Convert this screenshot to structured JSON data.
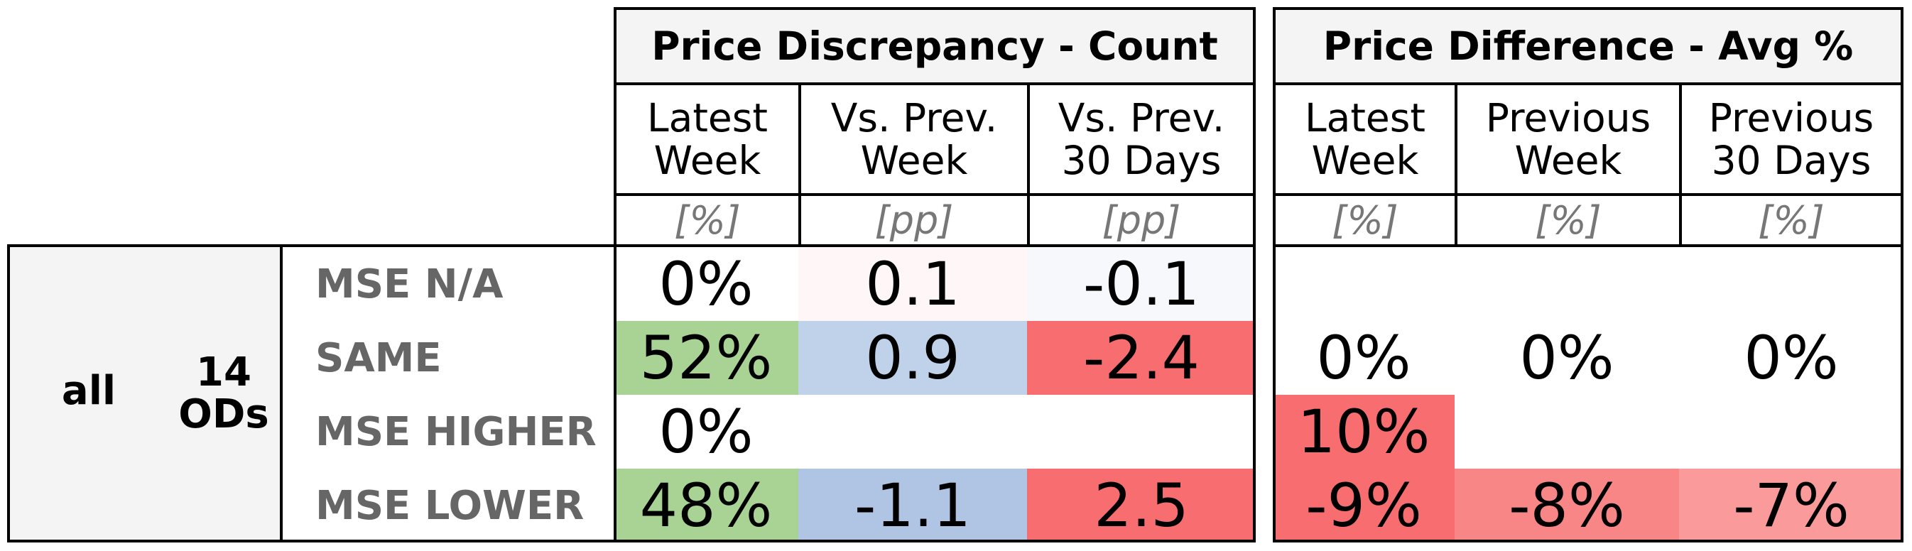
{
  "chart_data": {
    "type": "table",
    "row_group": {
      "label": "all",
      "count_label": "14\nODs"
    },
    "rows": [
      "MSE N/A",
      "SAME",
      "MSE HIGHER",
      "MSE LOWER"
    ],
    "tables": [
      {
        "title": "Price Discrepancy - Count",
        "columns": [
          {
            "label": "Latest\nWeek",
            "unit": "[%]"
          },
          {
            "label": "Vs. Prev.\nWeek",
            "unit": "[pp]"
          },
          {
            "label": "Vs. Prev.\n30 Days",
            "unit": "[pp]"
          }
        ],
        "cells": [
          [
            {
              "text": "0%",
              "color": "#ffffff"
            },
            {
              "text": "0.1",
              "color": "#fff7f7"
            },
            {
              "text": "-0.1",
              "color": "#f7f8fc"
            }
          ],
          [
            {
              "text": "52%",
              "color": "#a8d394"
            },
            {
              "text": "0.9",
              "color": "#c0d2ea"
            },
            {
              "text": "-2.4",
              "color": "#f76d70"
            }
          ],
          [
            {
              "text": "0%",
              "color": "#ffffff"
            },
            {
              "text": "",
              "color": "#ffffff"
            },
            {
              "text": "",
              "color": "#ffffff"
            }
          ],
          [
            {
              "text": "48%",
              "color": "#a8d394"
            },
            {
              "text": "-1.1",
              "color": "#b0c5e4"
            },
            {
              "text": "2.5",
              "color": "#f76d70"
            }
          ]
        ]
      },
      {
        "title": "Price Difference - Avg %",
        "columns": [
          {
            "label": "Latest\nWeek",
            "unit": "[%]"
          },
          {
            "label": "Previous\nWeek",
            "unit": "[%]"
          },
          {
            "label": "Previous\n30 Days",
            "unit": "[%]"
          }
        ],
        "cells": [
          [
            {
              "text": "",
              "color": "#ffffff"
            },
            {
              "text": "",
              "color": "#ffffff"
            },
            {
              "text": "",
              "color": "#ffffff"
            }
          ],
          [
            {
              "text": "0%",
              "color": "#ffffff"
            },
            {
              "text": "0%",
              "color": "#ffffff"
            },
            {
              "text": "0%",
              "color": "#ffffff"
            }
          ],
          [
            {
              "text": "10%",
              "color": "#f76d70"
            },
            {
              "text": "",
              "color": "#ffffff"
            },
            {
              "text": "",
              "color": "#ffffff"
            }
          ],
          [
            {
              "text": "-9%",
              "color": "#f76d70"
            },
            {
              "text": "-8%",
              "color": "#f98687"
            },
            {
              "text": "-7%",
              "color": "#fa9a9b"
            }
          ]
        ]
      }
    ]
  }
}
